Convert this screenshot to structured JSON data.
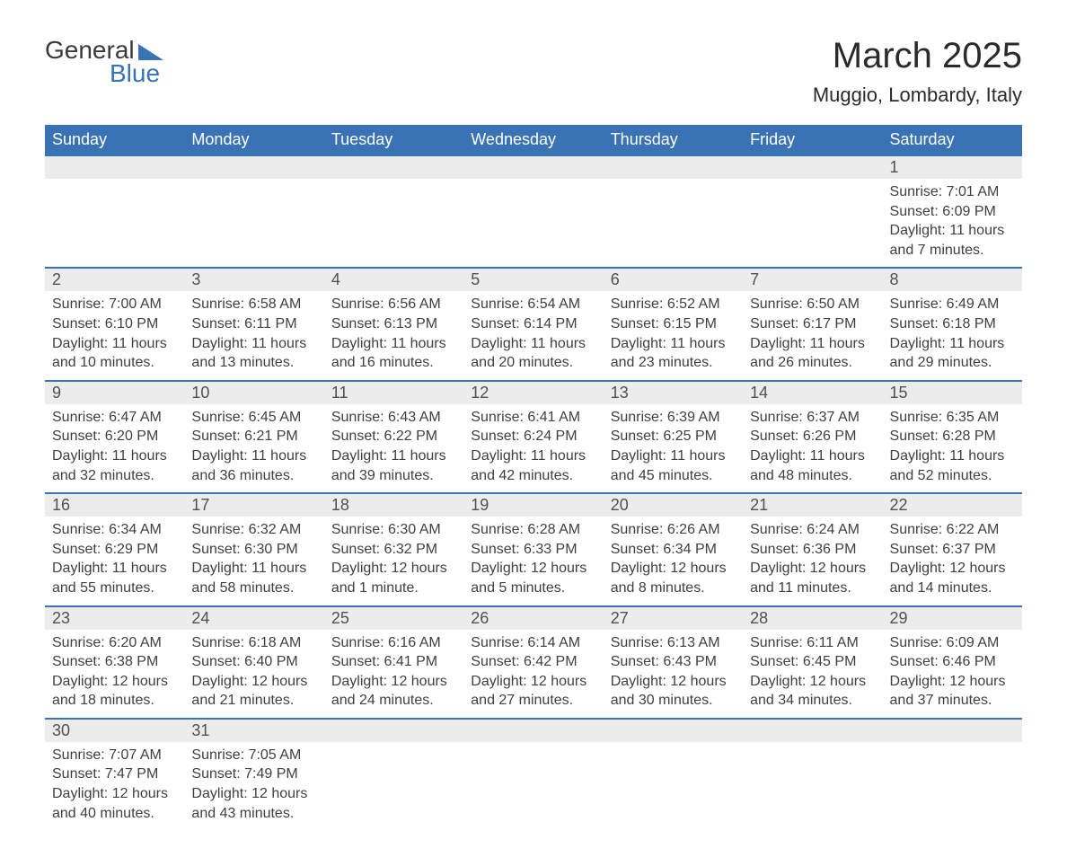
{
  "logo": {
    "text_general": "General",
    "text_blue": "Blue"
  },
  "title": "March 2025",
  "location": "Muggio, Lombardy, Italy",
  "colors": {
    "header_bg": "#3973b5",
    "header_text": "#ffffff",
    "date_bg": "#ececec",
    "border": "#3973b5",
    "text": "#404040"
  },
  "day_headers": [
    "Sunday",
    "Monday",
    "Tuesday",
    "Wednesday",
    "Thursday",
    "Friday",
    "Saturday"
  ],
  "weeks": [
    [
      null,
      null,
      null,
      null,
      null,
      null,
      {
        "date": "1",
        "sunrise": "Sunrise: 7:01 AM",
        "sunset": "Sunset: 6:09 PM",
        "daylight1": "Daylight: 11 hours",
        "daylight2": "and 7 minutes."
      }
    ],
    [
      {
        "date": "2",
        "sunrise": "Sunrise: 7:00 AM",
        "sunset": "Sunset: 6:10 PM",
        "daylight1": "Daylight: 11 hours",
        "daylight2": "and 10 minutes."
      },
      {
        "date": "3",
        "sunrise": "Sunrise: 6:58 AM",
        "sunset": "Sunset: 6:11 PM",
        "daylight1": "Daylight: 11 hours",
        "daylight2": "and 13 minutes."
      },
      {
        "date": "4",
        "sunrise": "Sunrise: 6:56 AM",
        "sunset": "Sunset: 6:13 PM",
        "daylight1": "Daylight: 11 hours",
        "daylight2": "and 16 minutes."
      },
      {
        "date": "5",
        "sunrise": "Sunrise: 6:54 AM",
        "sunset": "Sunset: 6:14 PM",
        "daylight1": "Daylight: 11 hours",
        "daylight2": "and 20 minutes."
      },
      {
        "date": "6",
        "sunrise": "Sunrise: 6:52 AM",
        "sunset": "Sunset: 6:15 PM",
        "daylight1": "Daylight: 11 hours",
        "daylight2": "and 23 minutes."
      },
      {
        "date": "7",
        "sunrise": "Sunrise: 6:50 AM",
        "sunset": "Sunset: 6:17 PM",
        "daylight1": "Daylight: 11 hours",
        "daylight2": "and 26 minutes."
      },
      {
        "date": "8",
        "sunrise": "Sunrise: 6:49 AM",
        "sunset": "Sunset: 6:18 PM",
        "daylight1": "Daylight: 11 hours",
        "daylight2": "and 29 minutes."
      }
    ],
    [
      {
        "date": "9",
        "sunrise": "Sunrise: 6:47 AM",
        "sunset": "Sunset: 6:20 PM",
        "daylight1": "Daylight: 11 hours",
        "daylight2": "and 32 minutes."
      },
      {
        "date": "10",
        "sunrise": "Sunrise: 6:45 AM",
        "sunset": "Sunset: 6:21 PM",
        "daylight1": "Daylight: 11 hours",
        "daylight2": "and 36 minutes."
      },
      {
        "date": "11",
        "sunrise": "Sunrise: 6:43 AM",
        "sunset": "Sunset: 6:22 PM",
        "daylight1": "Daylight: 11 hours",
        "daylight2": "and 39 minutes."
      },
      {
        "date": "12",
        "sunrise": "Sunrise: 6:41 AM",
        "sunset": "Sunset: 6:24 PM",
        "daylight1": "Daylight: 11 hours",
        "daylight2": "and 42 minutes."
      },
      {
        "date": "13",
        "sunrise": "Sunrise: 6:39 AM",
        "sunset": "Sunset: 6:25 PM",
        "daylight1": "Daylight: 11 hours",
        "daylight2": "and 45 minutes."
      },
      {
        "date": "14",
        "sunrise": "Sunrise: 6:37 AM",
        "sunset": "Sunset: 6:26 PM",
        "daylight1": "Daylight: 11 hours",
        "daylight2": "and 48 minutes."
      },
      {
        "date": "15",
        "sunrise": "Sunrise: 6:35 AM",
        "sunset": "Sunset: 6:28 PM",
        "daylight1": "Daylight: 11 hours",
        "daylight2": "and 52 minutes."
      }
    ],
    [
      {
        "date": "16",
        "sunrise": "Sunrise: 6:34 AM",
        "sunset": "Sunset: 6:29 PM",
        "daylight1": "Daylight: 11 hours",
        "daylight2": "and 55 minutes."
      },
      {
        "date": "17",
        "sunrise": "Sunrise: 6:32 AM",
        "sunset": "Sunset: 6:30 PM",
        "daylight1": "Daylight: 11 hours",
        "daylight2": "and 58 minutes."
      },
      {
        "date": "18",
        "sunrise": "Sunrise: 6:30 AM",
        "sunset": "Sunset: 6:32 PM",
        "daylight1": "Daylight: 12 hours",
        "daylight2": "and 1 minute."
      },
      {
        "date": "19",
        "sunrise": "Sunrise: 6:28 AM",
        "sunset": "Sunset: 6:33 PM",
        "daylight1": "Daylight: 12 hours",
        "daylight2": "and 5 minutes."
      },
      {
        "date": "20",
        "sunrise": "Sunrise: 6:26 AM",
        "sunset": "Sunset: 6:34 PM",
        "daylight1": "Daylight: 12 hours",
        "daylight2": "and 8 minutes."
      },
      {
        "date": "21",
        "sunrise": "Sunrise: 6:24 AM",
        "sunset": "Sunset: 6:36 PM",
        "daylight1": "Daylight: 12 hours",
        "daylight2": "and 11 minutes."
      },
      {
        "date": "22",
        "sunrise": "Sunrise: 6:22 AM",
        "sunset": "Sunset: 6:37 PM",
        "daylight1": "Daylight: 12 hours",
        "daylight2": "and 14 minutes."
      }
    ],
    [
      {
        "date": "23",
        "sunrise": "Sunrise: 6:20 AM",
        "sunset": "Sunset: 6:38 PM",
        "daylight1": "Daylight: 12 hours",
        "daylight2": "and 18 minutes."
      },
      {
        "date": "24",
        "sunrise": "Sunrise: 6:18 AM",
        "sunset": "Sunset: 6:40 PM",
        "daylight1": "Daylight: 12 hours",
        "daylight2": "and 21 minutes."
      },
      {
        "date": "25",
        "sunrise": "Sunrise: 6:16 AM",
        "sunset": "Sunset: 6:41 PM",
        "daylight1": "Daylight: 12 hours",
        "daylight2": "and 24 minutes."
      },
      {
        "date": "26",
        "sunrise": "Sunrise: 6:14 AM",
        "sunset": "Sunset: 6:42 PM",
        "daylight1": "Daylight: 12 hours",
        "daylight2": "and 27 minutes."
      },
      {
        "date": "27",
        "sunrise": "Sunrise: 6:13 AM",
        "sunset": "Sunset: 6:43 PM",
        "daylight1": "Daylight: 12 hours",
        "daylight2": "and 30 minutes."
      },
      {
        "date": "28",
        "sunrise": "Sunrise: 6:11 AM",
        "sunset": "Sunset: 6:45 PM",
        "daylight1": "Daylight: 12 hours",
        "daylight2": "and 34 minutes."
      },
      {
        "date": "29",
        "sunrise": "Sunrise: 6:09 AM",
        "sunset": "Sunset: 6:46 PM",
        "daylight1": "Daylight: 12 hours",
        "daylight2": "and 37 minutes."
      }
    ],
    [
      {
        "date": "30",
        "sunrise": "Sunrise: 7:07 AM",
        "sunset": "Sunset: 7:47 PM",
        "daylight1": "Daylight: 12 hours",
        "daylight2": "and 40 minutes."
      },
      {
        "date": "31",
        "sunrise": "Sunrise: 7:05 AM",
        "sunset": "Sunset: 7:49 PM",
        "daylight1": "Daylight: 12 hours",
        "daylight2": "and 43 minutes."
      },
      null,
      null,
      null,
      null,
      null
    ]
  ]
}
